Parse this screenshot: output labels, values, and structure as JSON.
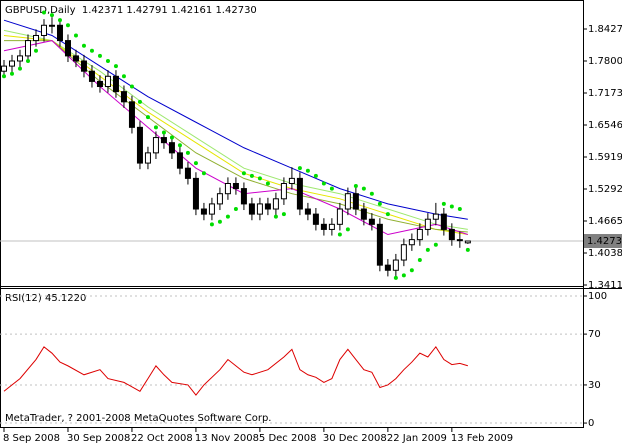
{
  "chart_data": [
    {
      "type": "candlestick",
      "title": "GBPUSD,Daily  1.42371 1.42791 1.42161 1.42730",
      "open": [
        1.76,
        1.77,
        1.78,
        1.79,
        1.82,
        1.83,
        1.85,
        1.85,
        1.82,
        1.79,
        1.78,
        1.76,
        1.74,
        1.73,
        1.75,
        1.72,
        1.7,
        1.65,
        1.58,
        1.6,
        1.63,
        1.62,
        1.6,
        1.57,
        1.55,
        1.49,
        1.48,
        1.5,
        1.52,
        1.54,
        1.53,
        1.5,
        1.48,
        1.5,
        1.49,
        1.51,
        1.54,
        1.55,
        1.49,
        1.48,
        1.46,
        1.45,
        1.46,
        1.49,
        1.52,
        1.49,
        1.47,
        1.46,
        1.38,
        1.37,
        1.39,
        1.42,
        1.43,
        1.45,
        1.47,
        1.48,
        1.45,
        1.43,
        1.42371
      ],
      "high": [
        1.782,
        1.792,
        1.802,
        1.832,
        1.842,
        1.862,
        1.866,
        1.862,
        1.832,
        1.802,
        1.792,
        1.772,
        1.752,
        1.762,
        1.762,
        1.732,
        1.712,
        1.662,
        1.612,
        1.642,
        1.642,
        1.632,
        1.612,
        1.582,
        1.562,
        1.502,
        1.512,
        1.532,
        1.552,
        1.552,
        1.542,
        1.512,
        1.512,
        1.512,
        1.522,
        1.552,
        1.572,
        1.562,
        1.502,
        1.492,
        1.472,
        1.472,
        1.502,
        1.532,
        1.532,
        1.502,
        1.482,
        1.472,
        1.392,
        1.402,
        1.432,
        1.442,
        1.462,
        1.482,
        1.502,
        1.492,
        1.462,
        1.446,
        1.42791
      ],
      "low": [
        1.748,
        1.758,
        1.768,
        1.778,
        1.808,
        1.818,
        1.834,
        1.808,
        1.778,
        1.768,
        1.748,
        1.728,
        1.718,
        1.718,
        1.708,
        1.688,
        1.638,
        1.568,
        1.568,
        1.588,
        1.608,
        1.588,
        1.558,
        1.538,
        1.478,
        1.468,
        1.468,
        1.488,
        1.508,
        1.518,
        1.488,
        1.468,
        1.468,
        1.478,
        1.478,
        1.498,
        1.528,
        1.478,
        1.468,
        1.448,
        1.438,
        1.438,
        1.448,
        1.478,
        1.478,
        1.458,
        1.448,
        1.368,
        1.358,
        1.358,
        1.378,
        1.408,
        1.418,
        1.438,
        1.458,
        1.438,
        1.418,
        1.414,
        1.42161
      ],
      "close": [
        1.77,
        1.78,
        1.79,
        1.82,
        1.83,
        1.85,
        1.85,
        1.82,
        1.79,
        1.78,
        1.76,
        1.74,
        1.73,
        1.75,
        1.72,
        1.7,
        1.65,
        1.58,
        1.6,
        1.63,
        1.62,
        1.6,
        1.57,
        1.55,
        1.49,
        1.48,
        1.5,
        1.52,
        1.54,
        1.53,
        1.5,
        1.48,
        1.5,
        1.49,
        1.51,
        1.54,
        1.55,
        1.49,
        1.48,
        1.46,
        1.45,
        1.46,
        1.49,
        1.52,
        1.49,
        1.47,
        1.46,
        1.38,
        1.37,
        1.39,
        1.42,
        1.43,
        1.45,
        1.47,
        1.48,
        1.45,
        1.43,
        1.43,
        1.4273
      ],
      "xlim": [
        -0.5,
        72.4
      ],
      "ylim": [
        1.3372,
        1.8956
      ],
      "yticks": [
        {
          "value": 1.8427,
          "label": "1.84270"
        },
        {
          "value": 1.78,
          "label": "1.78000"
        },
        {
          "value": 1.7173,
          "label": "1.71730"
        },
        {
          "value": 1.6546,
          "label": "1.65460"
        },
        {
          "value": 1.5919,
          "label": "1.59190"
        },
        {
          "value": 1.5292,
          "label": "1.52920"
        },
        {
          "value": 1.4665,
          "label": "1.46650"
        },
        {
          "value": 1.4038,
          "label": "1.40380"
        },
        {
          "value": 1.3411,
          "label": "1.34110"
        }
      ],
      "last_price": {
        "value": 1.4273,
        "label": "1.42730"
      },
      "lines": [
        {
          "color": "#0000cc",
          "x": [
            0,
            6,
            12,
            18,
            24,
            30,
            36,
            42,
            48,
            54,
            58
          ],
          "values": [
            1.86,
            1.83,
            1.77,
            1.71,
            1.66,
            1.61,
            1.57,
            1.53,
            1.5,
            1.48,
            1.47
          ]
        },
        {
          "color": "#9fe870",
          "x": [
            0,
            6,
            12,
            18,
            24,
            30,
            36,
            42,
            48,
            54,
            58
          ],
          "values": [
            1.84,
            1.82,
            1.76,
            1.69,
            1.63,
            1.57,
            1.54,
            1.52,
            1.49,
            1.46,
            1.45
          ]
        },
        {
          "color": "#e6e600",
          "x": [
            0,
            6,
            12,
            18,
            24,
            30,
            36,
            42,
            48,
            54,
            58
          ],
          "values": [
            1.83,
            1.82,
            1.75,
            1.68,
            1.62,
            1.56,
            1.53,
            1.51,
            1.48,
            1.45,
            1.44
          ]
        },
        {
          "color": "#90b030",
          "x": [
            0,
            6,
            12,
            18,
            24,
            30,
            36,
            42,
            48,
            54,
            58
          ],
          "values": [
            1.82,
            1.82,
            1.74,
            1.67,
            1.6,
            1.55,
            1.52,
            1.5,
            1.47,
            1.45,
            1.445
          ]
        },
        {
          "color": "#cc00cc",
          "x": [
            0,
            6,
            12,
            18,
            24,
            30,
            36,
            42,
            48,
            54,
            58
          ],
          "values": [
            1.8,
            1.82,
            1.73,
            1.65,
            1.57,
            1.52,
            1.53,
            1.49,
            1.44,
            1.46,
            1.44
          ]
        }
      ],
      "sar": {
        "color": "#00dd00",
        "x": [
          0,
          1,
          2,
          3,
          4,
          5,
          6,
          7,
          8,
          9,
          10,
          11,
          12,
          13,
          14,
          15,
          16,
          17,
          18,
          19,
          20,
          21,
          22,
          23,
          24,
          25,
          26,
          27,
          28,
          29,
          30,
          31,
          32,
          33,
          34,
          35,
          37,
          38,
          39,
          40,
          41,
          42,
          43,
          44,
          45,
          46,
          47,
          48,
          49,
          50,
          51,
          52,
          53,
          54,
          55,
          56,
          57,
          58
        ],
        "values": [
          1.75,
          1.755,
          1.765,
          1.78,
          1.8,
          1.875,
          1.87,
          1.86,
          1.85,
          1.83,
          1.81,
          1.8,
          1.79,
          1.78,
          1.77,
          1.75,
          1.73,
          1.7,
          1.67,
          1.65,
          1.64,
          1.63,
          1.615,
          1.6,
          1.58,
          1.56,
          1.46,
          1.465,
          1.475,
          1.49,
          1.56,
          1.555,
          1.55,
          1.54,
          1.475,
          1.48,
          1.57,
          1.565,
          1.555,
          1.54,
          1.53,
          1.44,
          1.45,
          1.535,
          1.53,
          1.52,
          1.5,
          1.48,
          1.355,
          1.36,
          1.37,
          1.39,
          1.41,
          1.42,
          1.5,
          1.495,
          1.49,
          1.41
        ]
      }
    },
    {
      "type": "line",
      "title": "RSI(12) 45.1220",
      "footer": "MetaTrader, ? 2001-2008 MetaQuotes Software Corp.",
      "color": "#dd0000",
      "x": [
        0,
        2,
        4,
        5,
        6,
        7,
        8,
        10,
        12,
        13,
        15,
        17,
        18,
        19,
        20,
        21,
        23,
        24,
        25,
        27,
        28,
        29,
        30,
        31,
        33,
        35,
        36,
        37,
        38,
        39,
        40,
        41,
        42,
        43,
        44,
        45,
        46,
        47,
        48,
        49,
        50,
        51,
        52,
        53,
        54,
        55,
        56,
        57,
        58
      ],
      "values": [
        25,
        35,
        50,
        60,
        55,
        48,
        45,
        38,
        42,
        35,
        32,
        25,
        35,
        45,
        38,
        32,
        30,
        22,
        30,
        42,
        50,
        45,
        40,
        38,
        42,
        52,
        58,
        42,
        38,
        36,
        32,
        35,
        50,
        58,
        50,
        42,
        40,
        28,
        30,
        35,
        42,
        48,
        55,
        52,
        60,
        50,
        46,
        47,
        45.122
      ],
      "xlim": [
        -0.5,
        72.4
      ],
      "ylim": [
        -3.1,
        105.5
      ],
      "yticks": [
        0,
        30,
        70,
        100
      ],
      "xticks": [
        {
          "value": 0,
          "label": "8 Sep 2008"
        },
        {
          "value": 8,
          "label": "30 Sep 2008"
        },
        {
          "value": 16,
          "label": "22 Oct 2008"
        },
        {
          "value": 24,
          "label": "13 Nov 2008"
        },
        {
          "value": 32,
          "label": "5 Dec 2008"
        },
        {
          "value": 40,
          "label": "30 Dec 2008"
        },
        {
          "value": 48,
          "label": "22 Jan 2009"
        },
        {
          "value": 56,
          "label": "13 Feb 2009"
        }
      ]
    }
  ]
}
